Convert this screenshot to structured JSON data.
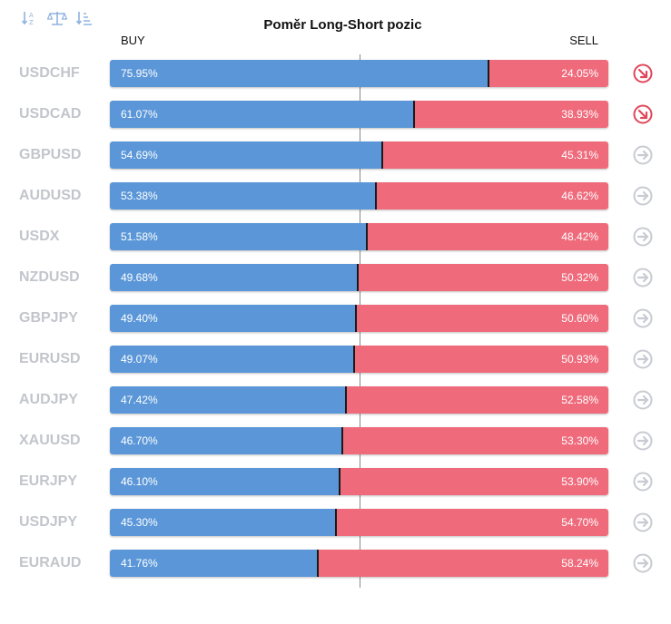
{
  "title": "Poměr Long-Short pozic",
  "headers": {
    "buy": "BUY",
    "sell": "SELL"
  },
  "toolbar": [
    "sort-alpha-icon",
    "balance-scale-icon",
    "sort-amount-icon"
  ],
  "colors": {
    "buy": "#5b97d8",
    "sell": "#ef6b7c",
    "symbol": "#c2c5cb",
    "trend_down": "#e0475b",
    "trend_neutral": "#c8cbd2"
  },
  "chart_data": {
    "type": "bar",
    "stacked": true,
    "orientation": "horizontal",
    "title": "Poměr Long-Short pozic",
    "categories": [
      "USDCHF",
      "USDCAD",
      "GBPUSD",
      "AUDUSD",
      "USDX",
      "NZDUSD",
      "GBPJPY",
      "EURUSD",
      "AUDJPY",
      "XAUUSD",
      "EURJPY",
      "USDJPY",
      "EURAUD"
    ],
    "series": [
      {
        "name": "BUY",
        "values": [
          75.95,
          61.07,
          54.69,
          53.38,
          51.58,
          49.68,
          49.4,
          49.07,
          47.42,
          46.7,
          46.1,
          45.3,
          41.76
        ]
      },
      {
        "name": "SELL",
        "values": [
          24.05,
          38.93,
          45.31,
          46.62,
          48.42,
          50.32,
          50.6,
          50.93,
          52.58,
          53.3,
          53.9,
          54.7,
          58.24
        ]
      }
    ],
    "buy_labels": [
      "75.95%",
      "61.07%",
      "54.69%",
      "53.38%",
      "51.58%",
      "49.68%",
      "49.40%",
      "49.07%",
      "47.42%",
      "46.70%",
      "46.10%",
      "45.30%",
      "41.76%"
    ],
    "sell_labels": [
      "24.05%",
      "38.93%",
      "45.31%",
      "46.62%",
      "48.42%",
      "50.32%",
      "50.60%",
      "50.93%",
      "52.58%",
      "53.30%",
      "53.90%",
      "54.70%",
      "58.24%"
    ],
    "trend_icons": [
      "down-right",
      "down-right",
      "right",
      "right",
      "right",
      "right",
      "right",
      "right",
      "right",
      "right",
      "right",
      "right",
      "right"
    ],
    "xlim": [
      0,
      100
    ]
  }
}
